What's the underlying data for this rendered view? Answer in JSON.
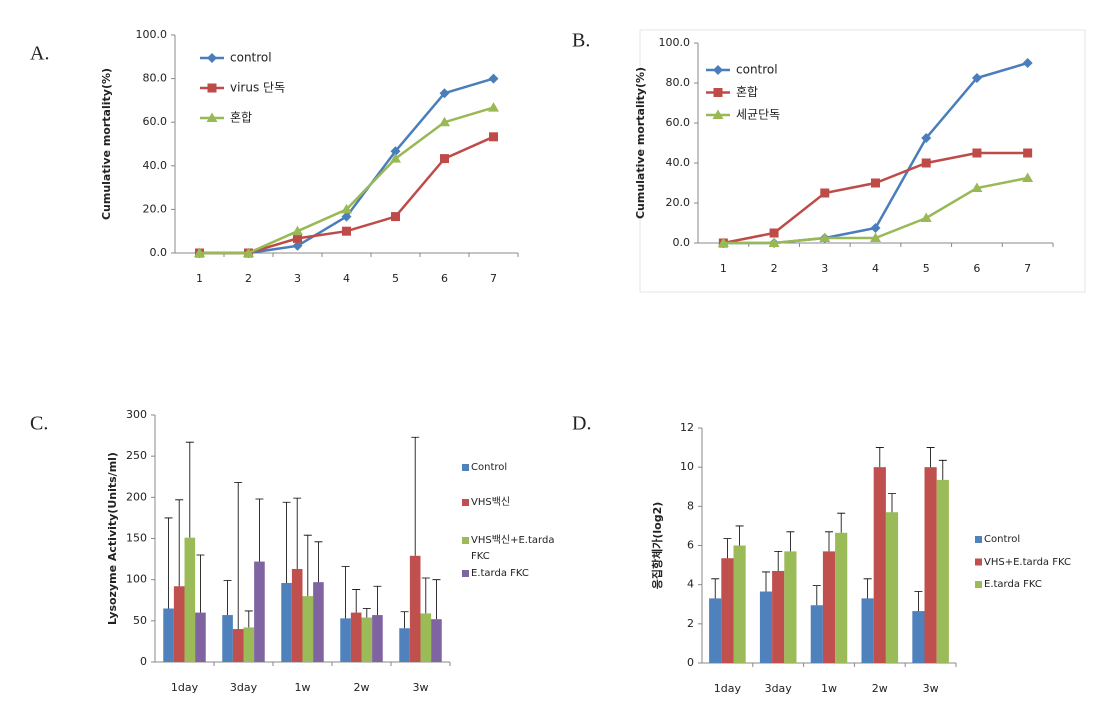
{
  "chart_data": [
    {
      "type": "line",
      "label": "A.",
      "ylabel": "Cumulative mortality(%)",
      "categories": [
        "1",
        "2",
        "3",
        "4",
        "5",
        "6",
        "7"
      ],
      "ylim": [
        0,
        100
      ],
      "yticks": [
        {
          "value": 0,
          "label": "0.0"
        },
        {
          "value": 20,
          "label": "20.0"
        },
        {
          "value": 40,
          "label": "40.0"
        },
        {
          "value": 60,
          "label": "60.0"
        },
        {
          "value": 80,
          "label": "80.0"
        },
        {
          "value": 100,
          "label": "100.0"
        }
      ],
      "series": [
        {
          "name": "control",
          "color": "#4a7ebb",
          "marker": "diamond",
          "values": [
            0,
            0,
            3.3,
            16.7,
            46.7,
            73.3,
            80
          ]
        },
        {
          "name": "virus 단독",
          "color": "#be4b48",
          "marker": "square",
          "values": [
            0,
            0,
            6.7,
            10,
            16.7,
            43.3,
            53.3
          ]
        },
        {
          "name": "혼합",
          "color": "#98b954",
          "marker": "triangle",
          "values": [
            0,
            0,
            10,
            20,
            43.3,
            60,
            66.7
          ]
        }
      ]
    },
    {
      "type": "line",
      "label": "B.",
      "ylabel": "Cumulative mortality(%)",
      "categories": [
        "1",
        "2",
        "3",
        "4",
        "5",
        "6",
        "7"
      ],
      "ylim": [
        0,
        100
      ],
      "yticks": [
        {
          "value": 0,
          "label": "0.0"
        },
        {
          "value": 20,
          "label": "20.0"
        },
        {
          "value": 40,
          "label": "40.0"
        },
        {
          "value": 60,
          "label": "60.0"
        },
        {
          "value": 80,
          "label": "80.0"
        },
        {
          "value": 100,
          "label": "100.0"
        }
      ],
      "series": [
        {
          "name": "control",
          "color": "#4a7ebb",
          "marker": "diamond",
          "values": [
            0,
            0,
            2.5,
            7.5,
            52.5,
            82.5,
            90
          ]
        },
        {
          "name": "혼합",
          "color": "#be4b48",
          "marker": "square",
          "values": [
            0,
            5,
            25,
            30,
            40,
            45,
            45
          ]
        },
        {
          "name": "세균단독",
          "color": "#98b954",
          "marker": "triangle",
          "values": [
            0,
            0,
            2.5,
            2.5,
            12.5,
            27.5,
            32.5
          ]
        }
      ]
    },
    {
      "type": "bar",
      "label": "C.",
      "ylabel": "Lysozyme Activity(Units/ml)",
      "categories": [
        "1day",
        "3day",
        "1w",
        "2w",
        "3w"
      ],
      "ylim": [
        0,
        300
      ],
      "yticks": [
        0,
        50,
        100,
        150,
        200,
        250,
        300
      ],
      "series": [
        {
          "name": "Control",
          "color": "#4f81bd",
          "values": [
            65,
            57,
            96,
            53,
            41
          ],
          "errors": [
            110,
            42,
            98,
            63,
            20
          ]
        },
        {
          "name": "VHS백신",
          "color": "#c0504d",
          "values": [
            92,
            40,
            113,
            60,
            129
          ],
          "errors": [
            105,
            178,
            86,
            28,
            144
          ]
        },
        {
          "name": "VHS백신+E.tarda FKC",
          "color": "#9bbb59",
          "values": [
            151,
            42,
            80,
            54,
            59
          ],
          "errors": [
            116,
            20,
            74,
            11,
            43
          ]
        },
        {
          "name": "E.tarda FKC",
          "color": "#8064a2",
          "values": [
            60,
            122,
            97,
            57,
            52
          ],
          "errors": [
            70,
            76,
            49,
            35,
            48
          ]
        }
      ]
    },
    {
      "type": "bar",
      "label": "D.",
      "ylabel": "응집항체가(log2)",
      "categories": [
        "1day",
        "3day",
        "1w",
        "2w",
        "3w"
      ],
      "ylim": [
        0,
        12
      ],
      "yticks": [
        0,
        2,
        4,
        6,
        8,
        10,
        12
      ],
      "series": [
        {
          "name": "Control",
          "color": "#4f81bd",
          "values": [
            3.3,
            3.65,
            2.95,
            3.3,
            2.65
          ],
          "errors": [
            1,
            1,
            1,
            1,
            1
          ]
        },
        {
          "name": "VHS+E.tarda FKC",
          "color": "#c0504d",
          "values": [
            5.35,
            4.7,
            5.7,
            10,
            10
          ],
          "errors": [
            1,
            1,
            1,
            1,
            1
          ]
        },
        {
          "name": "E.tarda FKC",
          "color": "#9bbb59",
          "values": [
            6,
            5.7,
            6.65,
            7.7,
            9.35
          ],
          "errors": [
            1,
            1,
            1,
            0.95,
            1
          ]
        }
      ]
    }
  ]
}
